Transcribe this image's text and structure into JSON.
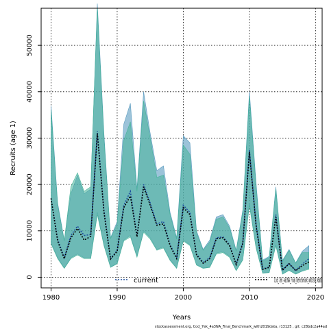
{
  "chart_data": {
    "type": "area",
    "xlabel": "Years",
    "ylabel": "Recruits (age 1)",
    "xlim": [
      1978.5,
      2021
    ],
    "ylim": [
      -2300,
      58000
    ],
    "grid": true,
    "legend_position": "bottom",
    "footer": "stockassessment.org,  Cod_7ek_4a3NA_Final_Benchmark_with2019data,  r13125 ,  git: c28bdc2a44ad",
    "x_ticks": [
      1980,
      1990,
      2000,
      2010,
      2020
    ],
    "y_ticks": [
      0,
      10000,
      20000,
      30000,
      40000,
      50000
    ],
    "years": [
      1980,
      1981,
      1982,
      1983,
      1984,
      1985,
      1986,
      1987,
      1988,
      1989,
      1990,
      1991,
      1992,
      1993,
      1994,
      1995,
      1996,
      1997,
      1998,
      1999,
      2000,
      2001,
      2002,
      2003,
      2004,
      2005,
      2006,
      2007,
      2008,
      2009,
      2010,
      2011,
      2012,
      2013,
      2014,
      2015,
      2016,
      2017,
      2018,
      2019
    ],
    "series": [
      {
        "name": "current",
        "color": "#5a9bbf",
        "line_color": "#1f4e9e",
        "estimate": [
          17000,
          8200,
          4200,
          9000,
          11000,
          9000,
          9200,
          31500,
          14500,
          4000,
          5800,
          15500,
          18500,
          9000,
          20000,
          16000,
          11500,
          12000,
          7000,
          4200,
          15500,
          14000,
          5000,
          3200,
          4200,
          8500,
          8700,
          7000,
          2800,
          7500,
          27500,
          11500,
          1800,
          2200,
          13500,
          1600,
          3000,
          1500,
          2800,
          4000
        ],
        "lower": [
          7500,
          4200,
          2000,
          4200,
          5000,
          4200,
          4200,
          14000,
          7000,
          2200,
          3000,
          8000,
          9000,
          4500,
          10000,
          8500,
          6000,
          6500,
          3800,
          2000,
          8000,
          7000,
          2700,
          2000,
          2200,
          5200,
          5500,
          4500,
          1500,
          3800,
          16000,
          6500,
          900,
          1100,
          7000,
          700,
          1500,
          700,
          1400,
          2000
        ],
        "upper": [
          37000,
          16000,
          8000,
          18000,
          22000,
          18000,
          19000,
          59000,
          31000,
          8500,
          12000,
          33000,
          37500,
          19000,
          40000,
          31000,
          23000,
          24000,
          14000,
          8500,
          30500,
          29000,
          10000,
          6000,
          8000,
          13000,
          13500,
          11000,
          5800,
          14500,
          40000,
          20500,
          3700,
          4500,
          19500,
          3600,
          6000,
          3100,
          5600,
          6800
        ]
      },
      {
        "name": "Cod_7ek_4a3NA_Final_Benchmark_with2019data",
        "color": "#47b299",
        "line_color": "#000000",
        "estimate": [
          17000,
          7800,
          4000,
          8500,
          10500,
          8000,
          8800,
          31000,
          14000,
          3900,
          5600,
          15000,
          17500,
          8700,
          19500,
          15500,
          11200,
          11500,
          6800,
          4000,
          15000,
          13500,
          4800,
          3000,
          4000,
          8300,
          8500,
          6800,
          2700,
          7300,
          27000,
          11200,
          1700,
          2100,
          13000,
          1500,
          2900,
          1400,
          2500,
          3300
        ],
        "lower": [
          7200,
          4000,
          1900,
          4000,
          4800,
          4000,
          4000,
          13500,
          6800,
          2100,
          2900,
          7800,
          8700,
          4300,
          9700,
          8200,
          5800,
          6300,
          3600,
          1900,
          7800,
          6800,
          2600,
          1900,
          2100,
          5000,
          5300,
          4300,
          1400,
          3700,
          15500,
          6300,
          850,
          1000,
          6800,
          650,
          1450,
          650,
          1300,
          1700
        ],
        "upper": [
          36000,
          15500,
          7800,
          19500,
          22500,
          18500,
          19500,
          58000,
          30000,
          8300,
          11500,
          29500,
          33500,
          18500,
          38000,
          30000,
          21500,
          22000,
          13500,
          8200,
          28500,
          26500,
          9600,
          5800,
          7600,
          12500,
          13000,
          10600,
          5600,
          14000,
          39000,
          19500,
          3500,
          4300,
          19000,
          3400,
          5800,
          3000,
          5300,
          5300
        ]
      }
    ]
  }
}
